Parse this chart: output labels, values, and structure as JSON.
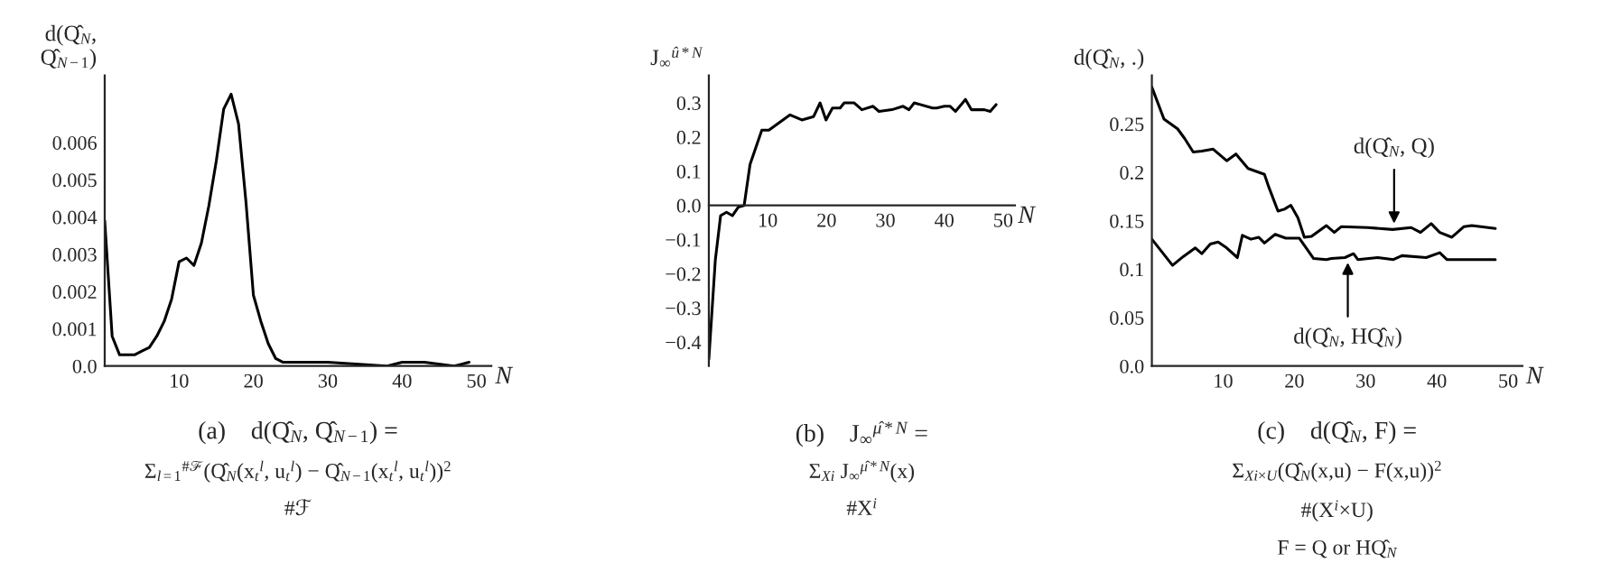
{
  "chart_data": [
    {
      "type": "line",
      "ylabel": "d(Q̂$_{N}$,\nQ̂$_{N−1}$)",
      "xlabel": "N",
      "xlim": [
        0,
        52
      ],
      "ylim": [
        0,
        0.0078
      ],
      "xticks": [
        10,
        20,
        30,
        40,
        50
      ],
      "yticks": [
        {
          "value": 0,
          "label": "0.0"
        },
        0.001,
        0.002,
        0.003,
        0.004,
        0.005,
        0.006
      ],
      "grid": false,
      "legend": false,
      "series": [
        {
          "color": "#000000",
          "x": [
            0,
            1,
            2,
            3,
            4,
            5,
            6,
            7,
            8,
            9,
            10,
            11,
            12,
            13,
            14,
            15,
            16,
            17,
            18,
            19,
            20,
            21,
            22,
            23,
            24,
            30,
            38,
            40,
            43,
            47,
            49
          ],
          "values": [
            0.0039,
            0.0008,
            0.0003,
            0.0003,
            0.0003,
            0.0004,
            0.0005,
            0.0008,
            0.0012,
            0.0018,
            0.0028,
            0.0029,
            0.0027,
            0.0033,
            0.0043,
            0.0055,
            0.0069,
            0.0073,
            0.0065,
            0.0044,
            0.0019,
            0.0012,
            0.0006,
            0.0002,
            0.0001,
            0.0001,
            0.0,
            0.0001,
            0.0001,
            0.0,
            0.0001
          ]
        }
      ],
      "annotations": [
        "(a)    d(Q̂$_{N}$, Q̂$_{N−1}$) =",
        "Σ$_{l=1}$$^{#ℱ}$(Q̂$_{N}$(x$_{t}$$^{l}$, u$_{t}$$^{l}$) − Q̂$_{N−1}$(x$_{t}$$^{l}$, u$_{t}$$^{l}$))$^{2}$",
        "#ℱ"
      ]
    },
    {
      "type": "line",
      "ylabel": "J$_{∞}$$^{û*N}$",
      "xlabel": "N",
      "xlim": [
        0,
        52
      ],
      "ylim": [
        -0.47,
        0.38
      ],
      "xticks": [
        10,
        20,
        30,
        40,
        50
      ],
      "yticks": [
        {
          "value": -0.4,
          "label": "−0.4"
        },
        {
          "value": -0.3,
          "label": "−0.3"
        },
        {
          "value": -0.2,
          "label": "−0.2"
        },
        {
          "value": -0.1,
          "label": "−0.1"
        },
        {
          "value": 0,
          "label": "0.0"
        },
        0.1,
        0.2,
        0.3
      ],
      "grid": false,
      "legend": false,
      "series": [
        {
          "color": "#000000",
          "x": [
            0,
            1.1,
            2,
            3,
            4,
            5,
            6,
            7,
            9,
            10.2,
            13.8,
            15.8,
            17.8,
            18.9,
            19.9,
            21,
            22.3,
            23,
            24.7,
            26,
            27.9,
            28.9,
            31.1,
            33,
            34,
            34.9,
            38,
            38.7,
            40,
            41,
            41.9,
            43.6,
            44.6,
            46.8,
            47.8,
            48.8
          ],
          "values": [
            -0.45,
            -0.16,
            -0.03,
            -0.02,
            -0.03,
            -0.005,
            0.0,
            0.12,
            0.22,
            0.22,
            0.265,
            0.25,
            0.26,
            0.3,
            0.25,
            0.285,
            0.285,
            0.3,
            0.3,
            0.28,
            0.29,
            0.275,
            0.28,
            0.29,
            0.28,
            0.3,
            0.285,
            0.285,
            0.29,
            0.29,
            0.275,
            0.31,
            0.28,
            0.28,
            0.275,
            0.295
          ]
        }
      ],
      "annotations": [
        "(b)    J$_{∞}$$^{μ̂*N}$ =",
        "Σ$_{Xi}$ J$_{∞}$$^{μ̂*N}$(x)",
        "#X$^{i}$"
      ]
    },
    {
      "type": "line",
      "ylabel": "d(Q̂$_{N}$, .)",
      "xlabel": "N",
      "xlim": [
        0,
        52
      ],
      "ylim": [
        0,
        0.3
      ],
      "xticks": [
        10,
        20,
        30,
        40,
        50
      ],
      "yticks": [
        {
          "value": 0,
          "label": "0.0"
        },
        0.05,
        0.1,
        0.15,
        0.2,
        0.25
      ],
      "grid": false,
      "legend": false,
      "series": [
        {
          "color": "#000000",
          "x": [
            0,
            1.7,
            3.6,
            4.6,
            5.8,
            7,
            8.6,
            10.5,
            11.8,
            13.5,
            15.8,
            16.4,
            17.7,
            18.6,
            19.5,
            20.5,
            21.4,
            22.4,
            24.5,
            25.6,
            26.6,
            30.3,
            33.8,
            36.4,
            37.7,
            39.2,
            40.4,
            42.1,
            43.8,
            44.9,
            48.2
          ],
          "values": [
            0.288,
            0.255,
            0.245,
            0.235,
            0.221,
            0.222,
            0.224,
            0.212,
            0.219,
            0.204,
            0.198,
            0.185,
            0.16,
            0.162,
            0.166,
            0.153,
            0.133,
            0.134,
            0.145,
            0.138,
            0.144,
            0.143,
            0.141,
            0.143,
            0.138,
            0.147,
            0.138,
            0.133,
            0.144,
            0.145,
            0.142
          ]
        },
        {
          "color": "#000000",
          "x": [
            0,
            2.9,
            4.4,
            6.1,
            7,
            8.2,
            9.3,
            10.5,
            12,
            12.7,
            13.9,
            15,
            15.8,
            17.3,
            18.8,
            20.7,
            22.7,
            24.5,
            25.2,
            27.1,
            28.3,
            28.9,
            31.7,
            33.9,
            35.1,
            38.5,
            40.4,
            41.4,
            44.5,
            48.2
          ],
          "values": [
            0.131,
            0.104,
            0.113,
            0.122,
            0.116,
            0.126,
            0.128,
            0.122,
            0.112,
            0.135,
            0.131,
            0.133,
            0.127,
            0.136,
            0.132,
            0.132,
            0.111,
            0.11,
            0.111,
            0.112,
            0.116,
            0.11,
            0.112,
            0.11,
            0.114,
            0.112,
            0.117,
            0.11,
            0.11,
            0.11
          ]
        }
      ],
      "annotations": [
        {
          "text": "d(Q̂$_{N}$, Q)",
          "x": 34,
          "y": 0.142
        },
        {
          "text": "d(Q̂$_{N}$, HQ̂$_{N}$)",
          "x": 27.5,
          "y": 0.112
        },
        "(c)    d(Q̂$_{N}$, F) =",
        "Σ$_{Xi×U}$(Q̂$_{N}$(x,u) − F(x,u))$^{2}$",
        "#(X$^{i}$×U)",
        "F = Q or HQ̂$_{N}$"
      ]
    }
  ]
}
